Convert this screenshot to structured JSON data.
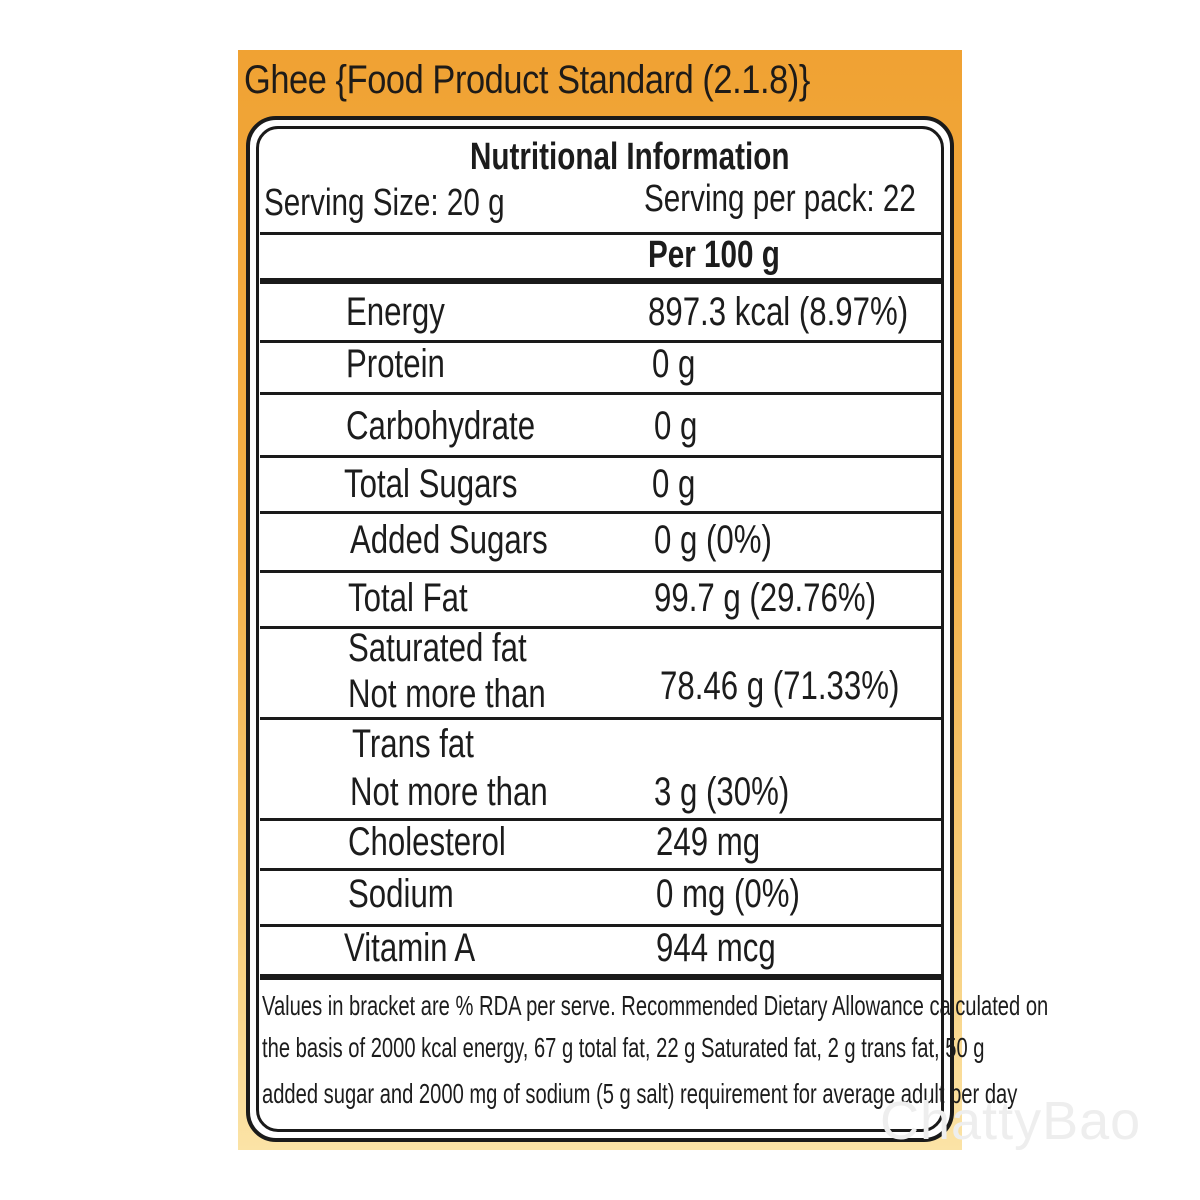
{
  "product_title": "Ghee {Food Product Standard (2.1.8)}",
  "heading": "Nutritional Information",
  "serving_size": "Serving Size:  20 g",
  "servings_per_pack": "Serving per pack: 22",
  "column_header": "Per 100 g",
  "rows": [
    {
      "label": "Energy",
      "value": "897.3  kcal (8.97%)"
    },
    {
      "label": "Protein",
      "value": "0 g"
    },
    {
      "label": "Carbohydrate",
      "value": "0 g"
    },
    {
      "label": "Total Sugars",
      "value": "0 g"
    },
    {
      "label": "Added Sugars",
      "value": "0 g (0%)"
    },
    {
      "label": "Total Fat",
      "value": "99.7 g (29.76%)"
    },
    {
      "label": "Saturated fat",
      "label2": "Not more than",
      "value": "78.46 g (71.33%)"
    },
    {
      "label": "Trans fat",
      "label2": "Not more than",
      "value": "3 g (30%)"
    },
    {
      "label": "Cholesterol",
      "value": "249 mg"
    },
    {
      "label": "Sodium",
      "value": "0 mg (0%)"
    },
    {
      "label": "Vitamin A",
      "value": "944 mcg"
    }
  ],
  "footnote": [
    "Values in bracket are % RDA per serve. Recommended Dietary Allowance calculated on",
    "the basis of 2000 kcal energy, 67 g total fat, 22 g Saturated fat, 2 g trans fat, 50 g",
    "added sugar and 2000 mg of sodium (5 g salt) requirement for average adult per day"
  ],
  "watermark": "ChattyBao",
  "colors": {
    "panel_top": "#f0a233",
    "panel_bottom": "#fbe3a6",
    "border": "#1a1a1a"
  }
}
